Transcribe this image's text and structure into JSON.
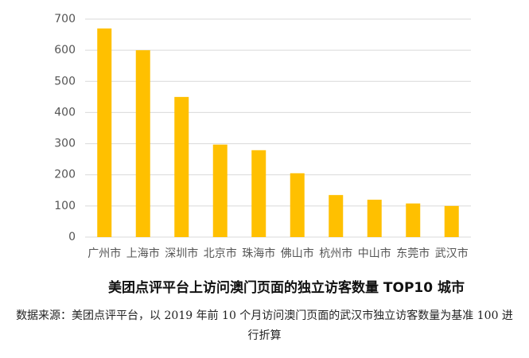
{
  "chart_data": {
    "type": "bar",
    "title": "美团点评平台上访问澳门页面的独立访客数量 TOP10 城市",
    "note": "数据来源：美团点评平台，以 2019 年前 10 个月访问澳门页面的武汉市独立访客数量为基准 100 进行折算",
    "categories": [
      "广州市",
      "上海市",
      "深圳市",
      "北京市",
      "珠海市",
      "佛山市",
      "杭州市",
      "中山市",
      "东莞市",
      "武汉市"
    ],
    "values": [
      670,
      600,
      450,
      297,
      279,
      205,
      135,
      120,
      108,
      100
    ],
    "color": "#ffc000",
    "ylim": [
      0,
      700
    ],
    "yticks": [
      0,
      100,
      200,
      300,
      400,
      500,
      600,
      700
    ],
    "grid": true
  }
}
